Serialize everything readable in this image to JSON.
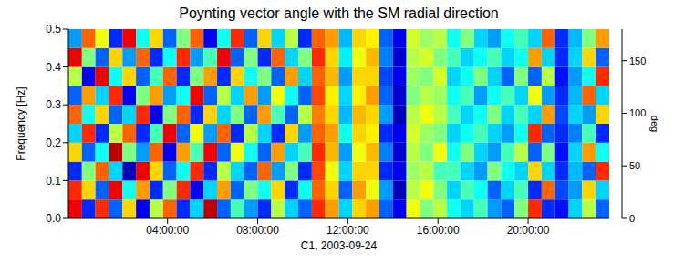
{
  "chart_data": {
    "type": "heatmap",
    "title": "Poynting vector angle with the SM radial direction",
    "x_label": "C1, 2003-09-24",
    "y_label": "Frequency [Hz]",
    "xlim": [
      -0.4,
      23.6
    ],
    "xticks": [
      {
        "value": 4,
        "label": "04:00:00"
      },
      {
        "value": 8,
        "label": "08:00:00"
      },
      {
        "value": 12,
        "label": "12:00:00"
      },
      {
        "value": 16,
        "label": "16:00:00"
      },
      {
        "value": 20,
        "label": "20:00:00"
      }
    ],
    "ylim": [
      0,
      0.5
    ],
    "yticks": [
      {
        "value": 0,
        "label": "0.0"
      },
      {
        "value": 0.1,
        "label": "0.1"
      },
      {
        "value": 0.2,
        "label": "0.2"
      },
      {
        "value": 0.3,
        "label": "0.3"
      },
      {
        "value": 0.4,
        "label": "0.4"
      },
      {
        "value": 0.5,
        "label": "0.5"
      }
    ],
    "x_bins": [
      -0.4,
      0.2,
      0.8,
      1.4,
      2.0,
      2.6,
      3.2,
      3.8,
      4.4,
      5.0,
      5.6,
      6.2,
      6.8,
      7.4,
      8.0,
      8.6,
      9.2,
      9.8,
      10.4,
      11.0,
      11.6,
      12.2,
      12.8,
      13.4,
      14.0,
      14.6,
      15.2,
      15.8,
      16.4,
      17.0,
      17.6,
      18.2,
      18.8,
      19.4,
      20.0,
      20.6,
      21.2,
      21.8,
      22.4,
      23.0,
      23.6
    ],
    "y_bins": [
      0,
      0.05,
      0.1,
      0.15,
      0.2,
      0.25,
      0.3,
      0.35,
      0.4,
      0.45,
      0.5
    ],
    "cells": [
      [
        160,
        30,
        150,
        40,
        120,
        20,
        100,
        140,
        30,
        60,
        170,
        40,
        80,
        50,
        30,
        100,
        60,
        40,
        150,
        130,
        60,
        120,
        130,
        40,
        20,
        110,
        90,
        100,
        70,
        60,
        80,
        50,
        40,
        90,
        150,
        30,
        25,
        60,
        100,
        40
      ],
      [
        150,
        120,
        40,
        160,
        70,
        130,
        30,
        90,
        150,
        20,
        60,
        130,
        40,
        90,
        70,
        120,
        30,
        70,
        140,
        120,
        40,
        130,
        110,
        50,
        10,
        100,
        110,
        90,
        60,
        80,
        70,
        40,
        60,
        80,
        30,
        140,
        35,
        50,
        120,
        60
      ],
      [
        30,
        90,
        140,
        60,
        10,
        160,
        120,
        40,
        70,
        150,
        30,
        100,
        60,
        40,
        140,
        50,
        90,
        30,
        145,
        110,
        60,
        120,
        120,
        30,
        20,
        95,
        100,
        80,
        80,
        60,
        50,
        90,
        70,
        60,
        120,
        60,
        30,
        55,
        40,
        150
      ],
      [
        120,
        40,
        70,
        170,
        90,
        50,
        140,
        20,
        130,
        80,
        160,
        40,
        110,
        70,
        40,
        130,
        60,
        80,
        150,
        125,
        50,
        110,
        125,
        45,
        15,
        100,
        90,
        110,
        70,
        90,
        60,
        50,
        80,
        100,
        40,
        90,
        25,
        60,
        130,
        70
      ],
      [
        60,
        150,
        30,
        100,
        140,
        30,
        80,
        160,
        40,
        110,
        50,
        140,
        30,
        100,
        60,
        30,
        120,
        50,
        140,
        130,
        70,
        120,
        115,
        30,
        20,
        105,
        95,
        90,
        60,
        70,
        80,
        60,
        50,
        70,
        150,
        40,
        30,
        45,
        80,
        30
      ],
      [
        140,
        70,
        120,
        40,
        60,
        150,
        20,
        90,
        140,
        30,
        120,
        60,
        90,
        40,
        130,
        80,
        40,
        100,
        135,
        120,
        55,
        125,
        120,
        50,
        10,
        100,
        110,
        100,
        80,
        60,
        70,
        90,
        60,
        80,
        60,
        130,
        35,
        60,
        50,
        120
      ],
      [
        40,
        130,
        60,
        150,
        20,
        90,
        130,
        50,
        70,
        160,
        40,
        100,
        60,
        130,
        50,
        110,
        70,
        40,
        145,
        115,
        60,
        115,
        130,
        40,
        15,
        90,
        100,
        95,
        70,
        80,
        50,
        70,
        80,
        60,
        110,
        50,
        30,
        55,
        140,
        60
      ],
      [
        100,
        20,
        160,
        70,
        120,
        40,
        80,
        140,
        30,
        90,
        130,
        30,
        120,
        70,
        90,
        40,
        130,
        60,
        140,
        125,
        50,
        120,
        120,
        35,
        20,
        95,
        90,
        105,
        60,
        70,
        90,
        60,
        40,
        90,
        40,
        100,
        25,
        50,
        70,
        150
      ],
      [
        160,
        90,
        40,
        120,
        50,
        140,
        30,
        70,
        150,
        50,
        80,
        160,
        40,
        90,
        30,
        140,
        60,
        90,
        150,
        120,
        65,
        110,
        125,
        45,
        15,
        100,
        105,
        90,
        80,
        60,
        70,
        80,
        60,
        70,
        130,
        60,
        30,
        60,
        120,
        40
      ],
      [
        50,
        140,
        110,
        30,
        160,
        70,
        120,
        40,
        90,
        140,
        20,
        70,
        150,
        40,
        120,
        60,
        100,
        30,
        140,
        130,
        55,
        120,
        115,
        40,
        20,
        105,
        95,
        100,
        70,
        90,
        60,
        50,
        70,
        80,
        60,
        140,
        30,
        55,
        90,
        130
      ]
    ],
    "colorbar_lim": [
      0,
      180
    ],
    "colorbar_ticks": [
      0,
      50,
      100,
      150
    ],
    "colorbar_label": "deg"
  }
}
